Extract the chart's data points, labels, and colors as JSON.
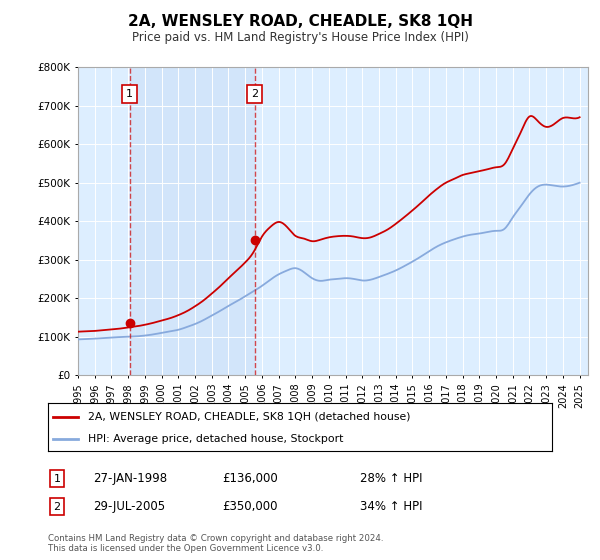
{
  "title": "2A, WENSLEY ROAD, CHEADLE, SK8 1QH",
  "subtitle": "Price paid vs. HM Land Registry's House Price Index (HPI)",
  "legend_line1": "2A, WENSLEY ROAD, CHEADLE, SK8 1QH (detached house)",
  "legend_line2": "HPI: Average price, detached house, Stockport",
  "sale1_date": 1998.08,
  "sale1_price": 136000,
  "sale1_label": "27-JAN-1998",
  "sale1_pct": "28% ↑ HPI",
  "sale2_date": 2005.57,
  "sale2_price": 350000,
  "sale2_label": "29-JUL-2005",
  "sale2_pct": "34% ↑ HPI",
  "xmin": 1995,
  "xmax": 2025.5,
  "ymin": 0,
  "ymax": 800000,
  "red_color": "#cc0000",
  "blue_color": "#88aadd",
  "bg_color": "#ddeeff",
  "bg_between": "#ccddf5",
  "footer": "Contains HM Land Registry data © Crown copyright and database right 2024.\nThis data is licensed under the Open Government Licence v3.0.",
  "hpi_years": [
    1995.0,
    1995.5,
    1996.0,
    1996.5,
    1997.0,
    1997.5,
    1998.0,
    1998.5,
    1999.0,
    1999.5,
    2000.0,
    2000.5,
    2001.0,
    2001.5,
    2002.0,
    2002.5,
    2003.0,
    2003.5,
    2004.0,
    2004.5,
    2005.0,
    2005.5,
    2006.0,
    2006.5,
    2007.0,
    2007.5,
    2008.0,
    2008.5,
    2009.0,
    2009.5,
    2010.0,
    2010.5,
    2011.0,
    2011.5,
    2012.0,
    2012.5,
    2013.0,
    2013.5,
    2014.0,
    2014.5,
    2015.0,
    2015.5,
    2016.0,
    2016.5,
    2017.0,
    2017.5,
    2018.0,
    2018.5,
    2019.0,
    2019.5,
    2020.0,
    2020.5,
    2021.0,
    2021.5,
    2022.0,
    2022.5,
    2023.0,
    2023.5,
    2024.0,
    2024.5,
    2025.0
  ],
  "hpi_prices": [
    93000,
    94000,
    95000,
    96500,
    98000,
    99000,
    100000,
    101000,
    103000,
    106000,
    110000,
    114000,
    118000,
    125000,
    133000,
    143000,
    155000,
    167000,
    180000,
    192000,
    205000,
    218000,
    232000,
    248000,
    262000,
    272000,
    278000,
    268000,
    252000,
    245000,
    248000,
    250000,
    252000,
    250000,
    246000,
    248000,
    255000,
    263000,
    272000,
    283000,
    295000,
    308000,
    322000,
    335000,
    345000,
    353000,
    360000,
    365000,
    368000,
    372000,
    375000,
    380000,
    410000,
    440000,
    470000,
    490000,
    495000,
    492000,
    490000,
    493000,
    500000
  ],
  "red_years": [
    1995.0,
    1995.5,
    1996.0,
    1996.5,
    1997.0,
    1997.5,
    1998.0,
    1998.5,
    1999.0,
    1999.5,
    2000.0,
    2000.5,
    2001.0,
    2001.5,
    2002.0,
    2002.5,
    2003.0,
    2003.5,
    2004.0,
    2004.5,
    2005.0,
    2005.5,
    2006.0,
    2006.5,
    2007.0,
    2007.5,
    2008.0,
    2008.5,
    2009.0,
    2009.5,
    2010.0,
    2010.5,
    2011.0,
    2011.5,
    2012.0,
    2012.5,
    2013.0,
    2013.5,
    2014.0,
    2014.5,
    2015.0,
    2015.5,
    2016.0,
    2016.5,
    2017.0,
    2017.5,
    2018.0,
    2018.5,
    2019.0,
    2019.5,
    2020.0,
    2020.5,
    2021.0,
    2021.5,
    2022.0,
    2022.5,
    2023.0,
    2023.5,
    2024.0,
    2024.5,
    2025.0
  ],
  "red_prices": [
    113000,
    114000,
    115000,
    117000,
    119000,
    121000,
    124000,
    127000,
    131000,
    136000,
    142000,
    148000,
    156000,
    166000,
    179000,
    194000,
    212000,
    231000,
    252000,
    272000,
    293000,
    320000,
    360000,
    385000,
    398000,
    385000,
    362000,
    355000,
    348000,
    352000,
    358000,
    361000,
    362000,
    360000,
    356000,
    358000,
    367000,
    378000,
    393000,
    410000,
    428000,
    447000,
    467000,
    485000,
    500000,
    510000,
    520000,
    525000,
    530000,
    535000,
    540000,
    548000,
    588000,
    633000,
    672000,
    660000,
    645000,
    653000,
    668000,
    668000,
    670000
  ]
}
